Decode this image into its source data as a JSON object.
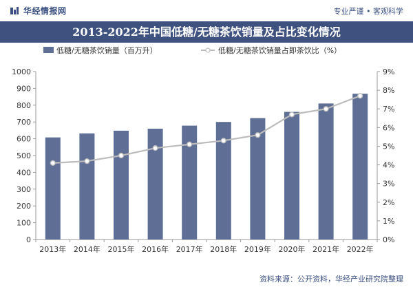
{
  "header": {
    "brand": "华经情报网",
    "slogan": "专业严谨 • 客观科学"
  },
  "title": "2013-2022年中国低糖/无糖茶饮销量及占比变化情况",
  "source": "资料来源：公开资料，华经产业研究院整理",
  "watermark": "华经产业研究院",
  "colors": {
    "bar": "#5e6e95",
    "line": "#bcbcbc",
    "marker_fill": "#ffffff",
    "title_bg": "#3f527f"
  },
  "chart_data": {
    "type": "bar",
    "categories": [
      "2013年",
      "2014年",
      "2015年",
      "2016年",
      "2017年",
      "2018年",
      "2019年",
      "2020年",
      "2021年",
      "2022年"
    ],
    "series": [
      {
        "name": "低糖/无糖茶饮销量（百万升）",
        "type": "bar",
        "axis": "left",
        "values": [
          608,
          632,
          648,
          660,
          678,
          700,
          723,
          760,
          810,
          868
        ]
      },
      {
        "name": "低糖/无糖茶饮销量占即茶饮比（%）",
        "type": "line",
        "axis": "right",
        "values": [
          4.1,
          4.2,
          4.5,
          4.9,
          5.1,
          5.3,
          5.6,
          6.7,
          7.0,
          7.7
        ]
      }
    ],
    "y_left": {
      "min": 0,
      "max": 1000,
      "step": 100,
      "ticks": [
        "0",
        "100",
        "200",
        "300",
        "400",
        "500",
        "600",
        "700",
        "800",
        "900",
        "1000"
      ]
    },
    "y_right": {
      "min": 0,
      "max": 9,
      "step": 1,
      "ticks": [
        "0%",
        "1%",
        "2%",
        "3%",
        "4%",
        "5%",
        "6%",
        "7%",
        "8%",
        "9%"
      ]
    },
    "legend_position": "top",
    "grid": false
  }
}
